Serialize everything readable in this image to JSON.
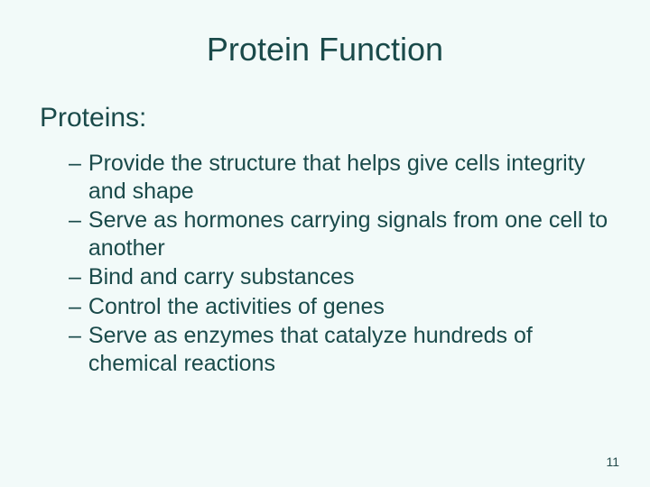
{
  "slide": {
    "title": "Protein Function",
    "subtitle": "Proteins:",
    "bullets": [
      "Provide the structure that helps give cells integrity and shape",
      "Serve as hormones carrying signals from one cell to another",
      "Bind and carry substances",
      "Control the activities of genes",
      "Serve as enzymes that catalyze hundreds of chemical reactions"
    ],
    "page_number": "11",
    "colors": {
      "background": "#f2faf9",
      "text": "#1a4a4a"
    },
    "typography": {
      "title_fontsize": 36,
      "subtitle_fontsize": 30,
      "bullet_fontsize": 25,
      "pagenum_fontsize": 14,
      "font_family": "Arial"
    }
  }
}
